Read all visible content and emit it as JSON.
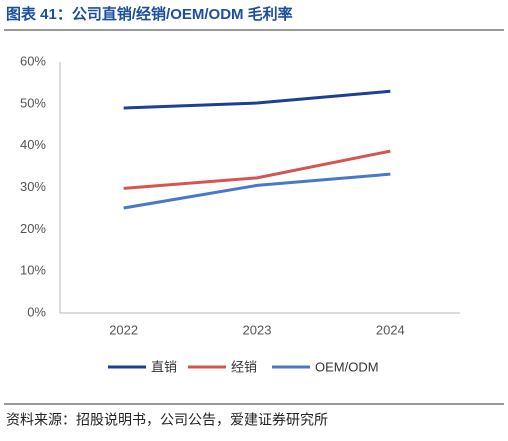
{
  "chart_data": {
    "type": "line",
    "title": "图表 41：公司直销/经销/OEM/ODM 毛利率",
    "source": "资料来源：招股说明书，公司公告，爱建证券研究所",
    "categories": [
      "2022",
      "2023",
      "2024"
    ],
    "series": [
      {
        "name": "直销",
        "color": "#1d3f94",
        "values": [
          49,
          50.2,
          53
        ]
      },
      {
        "name": "经销",
        "color": "#d65452",
        "values": [
          29.8,
          32.3,
          38.7
        ]
      },
      {
        "name": "OEM/ODM",
        "color": "#4a78c8",
        "values": [
          25.1,
          30.5,
          33.2
        ]
      }
    ],
    "ylim": [
      0,
      60
    ],
    "yticks": [
      {
        "value": 0,
        "label": "0%"
      },
      {
        "value": 10,
        "label": "10%"
      },
      {
        "value": 20,
        "label": "20%"
      },
      {
        "value": 30,
        "label": "30%"
      },
      {
        "value": 40,
        "label": "40%"
      },
      {
        "value": 50,
        "label": "50%"
      },
      {
        "value": 60,
        "label": "60%"
      }
    ],
    "legend": "bottom"
  }
}
